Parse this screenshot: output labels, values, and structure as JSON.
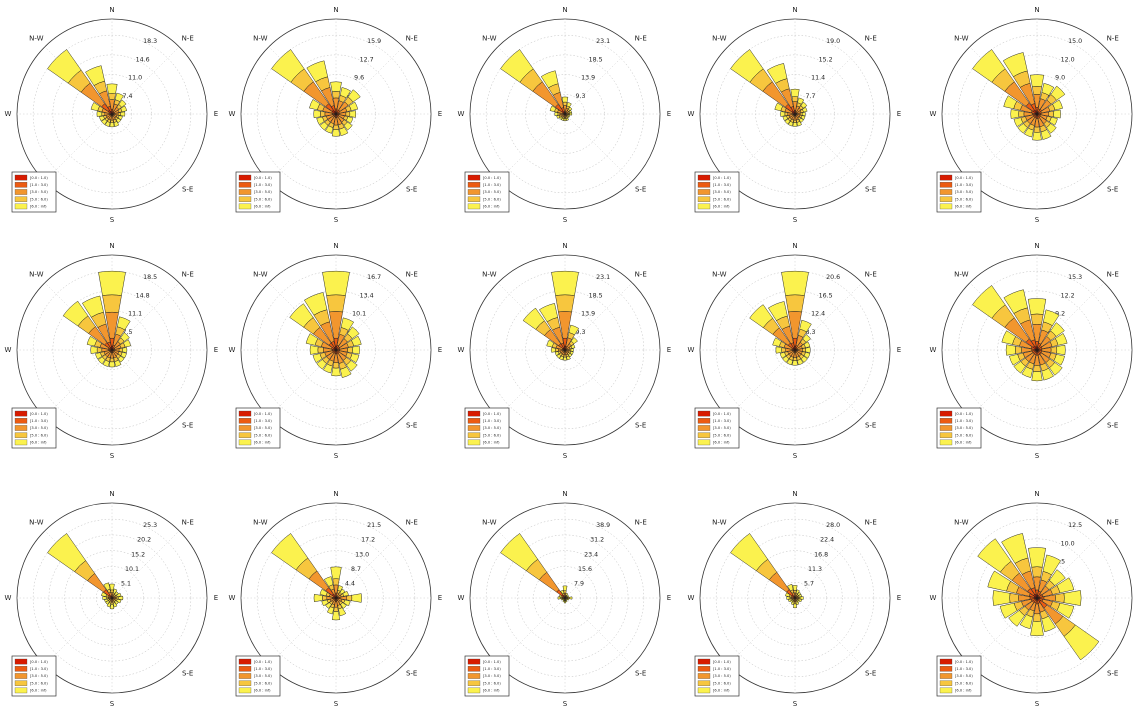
{
  "figure": {
    "compass_labels": {
      "N": "N",
      "NE": "N-E",
      "E": "E",
      "SE": "S-E",
      "S": "S",
      "W": "W",
      "NW": "N-W"
    },
    "legend_items": [
      "[0.0 : 1.0)",
      "[1.0 : 3.0)",
      "[3.0 : 5.0)",
      "[5.0 : 6.0)",
      "[6.0 : inf)"
    ],
    "bin_colors": [
      "#d71b00",
      "#ec5b12",
      "#f2962e",
      "#f7c63e",
      "#fbf24e"
    ]
  },
  "chart_data": [
    {
      "type": "windrose",
      "r_ticks": [
        "18.3",
        "14.6",
        "11.0",
        "7.4"
      ],
      "r_max": 18.3,
      "directions": [
        "N",
        "NNE",
        "NE",
        "ENE",
        "E",
        "ESE",
        "SE",
        "SSE",
        "S",
        "SSW",
        "SW",
        "WSW",
        "W",
        "WNW",
        "NW",
        "NNW"
      ],
      "totals": [
        7.0,
        5.0,
        4.0,
        3.5,
        3.0,
        2.5,
        2.5,
        3.0,
        3.0,
        3.0,
        3.0,
        3.0,
        3.5,
        5.0,
        18.3,
        11.5
      ],
      "bin_fractions": [
        0.06,
        0.1,
        0.32,
        0.2,
        0.32
      ]
    },
    {
      "type": "windrose",
      "r_ticks": [
        "15.9",
        "12.7",
        "9.6",
        "6.4"
      ],
      "r_max": 15.9,
      "directions": [
        "N",
        "NNE",
        "NE",
        "ENE",
        "E",
        "ESE",
        "SE",
        "SSE",
        "S",
        "SSW",
        "SW",
        "WSW",
        "W",
        "WNW",
        "NW",
        "NNW"
      ],
      "totals": [
        6.5,
        5.5,
        6.0,
        4.5,
        4.0,
        3.5,
        4.0,
        4.5,
        4.5,
        4.0,
        4.0,
        4.0,
        4.5,
        5.5,
        15.9,
        11.0
      ],
      "bin_fractions": [
        0.06,
        0.1,
        0.34,
        0.2,
        0.3
      ]
    },
    {
      "type": "windrose",
      "r_ticks": [
        "23.1",
        "18.5",
        "13.9",
        "9.3"
      ],
      "r_max": 23.1,
      "directions": [
        "N",
        "NNE",
        "NE",
        "ENE",
        "E",
        "ESE",
        "SE",
        "SSE",
        "S",
        "SSW",
        "SW",
        "WSW",
        "W",
        "WNW",
        "NW",
        "NNW"
      ],
      "totals": [
        5.0,
        3.5,
        2.5,
        2.0,
        2.0,
        1.5,
        1.5,
        2.0,
        2.0,
        2.0,
        2.0,
        2.5,
        3.0,
        4.5,
        23.1,
        13.0
      ],
      "bin_fractions": [
        0.05,
        0.1,
        0.35,
        0.2,
        0.3
      ]
    },
    {
      "type": "windrose",
      "r_ticks": [
        "19.0",
        "15.2",
        "11.4",
        "7.7"
      ],
      "r_max": 19.0,
      "directions": [
        "N",
        "NNE",
        "NE",
        "ENE",
        "E",
        "ESE",
        "SE",
        "SSE",
        "S",
        "SSW",
        "SW",
        "WSW",
        "W",
        "WNW",
        "NW",
        "NNW"
      ],
      "totals": [
        6.0,
        4.0,
        3.5,
        3.0,
        2.5,
        2.5,
        2.5,
        3.0,
        3.0,
        3.0,
        3.0,
        3.0,
        3.5,
        5.0,
        19.0,
        12.5
      ],
      "bin_fractions": [
        0.05,
        0.1,
        0.35,
        0.2,
        0.3
      ]
    },
    {
      "type": "windrose",
      "r_ticks": [
        "15.0",
        "12.0",
        "9.0",
        "6.1"
      ],
      "r_max": 15.0,
      "directions": [
        "N",
        "NNE",
        "NE",
        "ENE",
        "E",
        "ESE",
        "SE",
        "SSE",
        "S",
        "SSW",
        "SW",
        "WSW",
        "W",
        "WNW",
        "NW",
        "NNW"
      ],
      "totals": [
        7.5,
        6.0,
        6.5,
        5.0,
        4.5,
        4.0,
        4.5,
        5.0,
        5.0,
        4.5,
        4.5,
        4.5,
        5.0,
        6.5,
        15.0,
        12.0
      ],
      "bin_fractions": [
        0.06,
        0.11,
        0.33,
        0.2,
        0.3
      ]
    },
    {
      "type": "windrose",
      "r_ticks": [
        "18.5",
        "14.8",
        "11.1",
        "7.5"
      ],
      "r_max": 18.5,
      "directions": [
        "N",
        "NNE",
        "NE",
        "ENE",
        "E",
        "ESE",
        "SE",
        "SSE",
        "S",
        "SSW",
        "SW",
        "WSW",
        "W",
        "WNW",
        "NW",
        "NNW"
      ],
      "totals": [
        18.5,
        8.0,
        5.0,
        4.5,
        3.5,
        3.5,
        3.5,
        4.0,
        4.0,
        4.0,
        4.0,
        4.0,
        5.0,
        6.0,
        14.0,
        13.0
      ],
      "bin_fractions": [
        0.05,
        0.1,
        0.33,
        0.22,
        0.3
      ]
    },
    {
      "type": "windrose",
      "r_ticks": [
        "16.7",
        "13.4",
        "10.1",
        "6.7"
      ],
      "r_max": 16.7,
      "directions": [
        "N",
        "NNE",
        "NE",
        "ENE",
        "E",
        "ESE",
        "SE",
        "SSE",
        "S",
        "SSW",
        "SW",
        "WSW",
        "W",
        "WNW",
        "NW",
        "NNW"
      ],
      "totals": [
        16.7,
        7.0,
        6.0,
        5.5,
        5.0,
        5.0,
        5.5,
        6.0,
        5.5,
        5.0,
        5.0,
        5.0,
        5.5,
        6.5,
        12.0,
        12.5
      ],
      "bin_fractions": [
        0.05,
        0.1,
        0.34,
        0.21,
        0.3
      ]
    },
    {
      "type": "windrose",
      "r_ticks": [
        "23.1",
        "18.5",
        "13.9",
        "9.3"
      ],
      "r_max": 23.1,
      "directions": [
        "N",
        "NNE",
        "NE",
        "ENE",
        "E",
        "ESE",
        "SE",
        "SSE",
        "S",
        "SSW",
        "SW",
        "WSW",
        "W",
        "WNW",
        "NW",
        "NNW"
      ],
      "totals": [
        23.1,
        7.5,
        4.5,
        3.0,
        2.5,
        2.5,
        2.5,
        3.0,
        3.0,
        3.0,
        3.0,
        3.0,
        4.0,
        5.5,
        15.0,
        14.0
      ],
      "bin_fractions": [
        0.05,
        0.1,
        0.34,
        0.21,
        0.3
      ]
    },
    {
      "type": "windrose",
      "r_ticks": [
        "20.6",
        "16.5",
        "12.4",
        "8.3"
      ],
      "r_max": 20.6,
      "directions": [
        "N",
        "NNE",
        "NE",
        "ENE",
        "E",
        "ESE",
        "SE",
        "SSE",
        "S",
        "SSW",
        "SW",
        "WSW",
        "W",
        "WNW",
        "NW",
        "NNW"
      ],
      "totals": [
        20.6,
        8.0,
        5.0,
        4.0,
        4.0,
        4.0,
        4.0,
        4.0,
        4.0,
        4.0,
        4.0,
        4.0,
        5.0,
        6.0,
        14.5,
        13.0
      ],
      "bin_fractions": [
        0.05,
        0.1,
        0.34,
        0.21,
        0.3
      ]
    },
    {
      "type": "windrose",
      "r_ticks": [
        "15.3",
        "12.2",
        "9.2",
        "6.1"
      ],
      "r_max": 15.3,
      "directions": [
        "N",
        "NNE",
        "NE",
        "ENE",
        "E",
        "ESE",
        "SE",
        "SSE",
        "S",
        "SSW",
        "SW",
        "WSW",
        "W",
        "WNW",
        "NW",
        "NNW"
      ],
      "totals": [
        10.0,
        8.0,
        6.5,
        6.0,
        5.5,
        5.5,
        6.0,
        6.0,
        6.0,
        5.5,
        5.5,
        5.5,
        6.0,
        7.0,
        15.3,
        12.0
      ],
      "bin_fractions": [
        0.06,
        0.11,
        0.33,
        0.2,
        0.3
      ]
    },
    {
      "type": "windrose",
      "r_ticks": [
        "25.3",
        "20.2",
        "15.2",
        "10.1",
        "5.1"
      ],
      "r_max": 25.3,
      "directions": [
        "N",
        "NNE",
        "NE",
        "ENE",
        "E",
        "ESE",
        "SE",
        "SSE",
        "S",
        "SSW",
        "SW",
        "WSW",
        "W",
        "WNW",
        "NW",
        "NNW"
      ],
      "totals": [
        4.5,
        3.0,
        2.5,
        3.0,
        3.5,
        3.0,
        2.5,
        3.0,
        3.5,
        3.0,
        2.5,
        2.5,
        3.0,
        3.5,
        25.3,
        5.0
      ],
      "bin_fractions": [
        0.05,
        0.08,
        0.25,
        0.2,
        0.42
      ]
    },
    {
      "type": "windrose",
      "r_ticks": [
        "21.5",
        "17.2",
        "13.0",
        "8.7",
        "4.4"
      ],
      "r_max": 21.5,
      "directions": [
        "N",
        "NNE",
        "NE",
        "ENE",
        "E",
        "ESE",
        "SE",
        "SSE",
        "S",
        "SSW",
        "SW",
        "WSW",
        "W",
        "WNW",
        "NW",
        "NNW"
      ],
      "totals": [
        8.5,
        3.5,
        3.0,
        3.5,
        7.0,
        4.0,
        3.5,
        5.0,
        6.0,
        4.5,
        3.5,
        4.0,
        6.0,
        4.5,
        21.5,
        6.0
      ],
      "bin_fractions": [
        0.06,
        0.1,
        0.26,
        0.2,
        0.38
      ]
    },
    {
      "type": "windrose",
      "r_ticks": [
        "38.9",
        "31.2",
        "23.4",
        "15.6",
        "7.9"
      ],
      "r_max": 38.9,
      "directions": [
        "N",
        "NNE",
        "NE",
        "ENE",
        "E",
        "ESE",
        "SE",
        "SSE",
        "S",
        "SSW",
        "SW",
        "WSW",
        "W",
        "WNW",
        "NW",
        "NNW"
      ],
      "totals": [
        6.0,
        2.5,
        2.0,
        2.0,
        3.5,
        2.0,
        1.5,
        2.0,
        2.5,
        2.0,
        1.5,
        2.0,
        3.5,
        3.0,
        38.9,
        4.0
      ],
      "bin_fractions": [
        0.05,
        0.08,
        0.27,
        0.2,
        0.4
      ]
    },
    {
      "type": "windrose",
      "r_ticks": [
        "28.0",
        "22.4",
        "16.8",
        "11.3",
        "5.7"
      ],
      "r_max": 28.0,
      "directions": [
        "N",
        "NNE",
        "NE",
        "ENE",
        "E",
        "ESE",
        "SE",
        "SSE",
        "S",
        "SSW",
        "SW",
        "WSW",
        "W",
        "WNW",
        "NW",
        "NNW"
      ],
      "totals": [
        4.5,
        3.0,
        2.5,
        2.5,
        3.0,
        2.5,
        2.0,
        2.5,
        3.5,
        2.5,
        2.0,
        2.5,
        3.0,
        3.5,
        28.0,
        5.0
      ],
      "bin_fractions": [
        0.05,
        0.08,
        0.27,
        0.2,
        0.4
      ]
    },
    {
      "type": "windrose",
      "r_ticks": [
        "12.5",
        "10.0",
        "7.5",
        "5.0"
      ],
      "r_max": 12.5,
      "directions": [
        "N",
        "NNE",
        "NE",
        "ENE",
        "E",
        "ESE",
        "SE",
        "SSE",
        "S",
        "SSW",
        "SW",
        "WSW",
        "W",
        "WNW",
        "NW",
        "NNW"
      ],
      "totals": [
        8.0,
        7.0,
        5.5,
        6.0,
        7.0,
        6.0,
        12.0,
        5.5,
        6.0,
        5.0,
        5.5,
        6.0,
        7.0,
        8.0,
        11.5,
        10.5
      ],
      "bin_fractions": [
        0.06,
        0.1,
        0.26,
        0.2,
        0.38
      ]
    }
  ]
}
